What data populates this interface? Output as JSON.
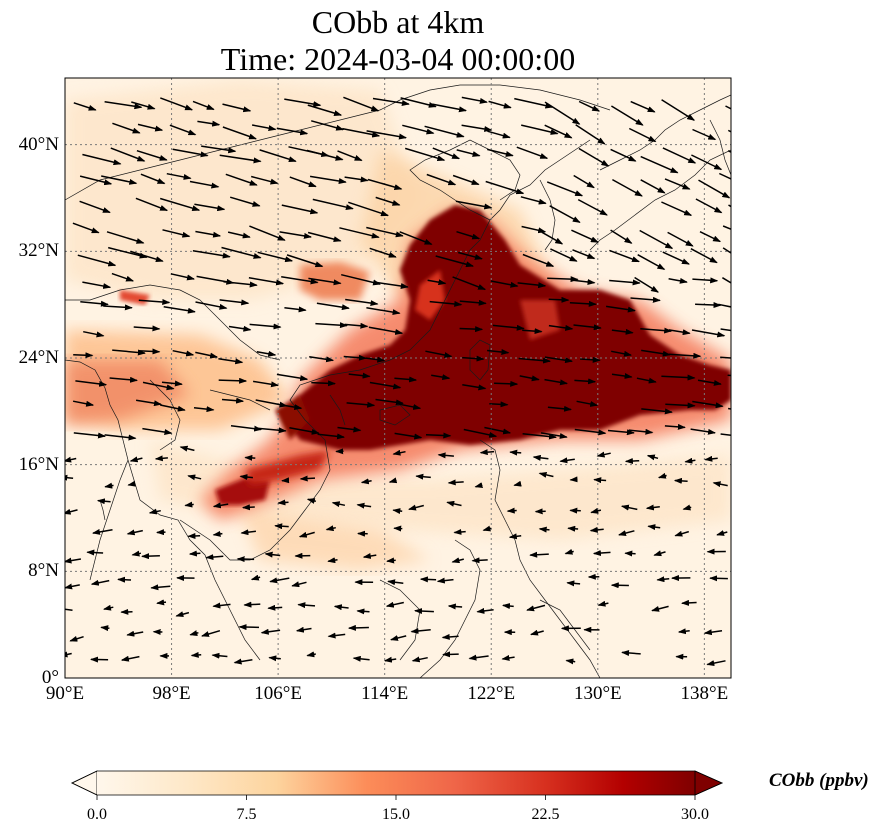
{
  "title": {
    "line1": "CObb at 4km",
    "line2": "Time: 2024-03-04 00:00:00"
  },
  "map": {
    "lon_range": [
      90,
      140
    ],
    "lat_range": [
      0,
      45
    ],
    "lon_ticks": [
      "90°E",
      "98°E",
      "106°E",
      "114°E",
      "122°E",
      "130°E",
      "138°E"
    ],
    "lat_ticks": [
      "0°",
      "8°N",
      "16°N",
      "24°N",
      "32°N",
      "40°N"
    ],
    "lon_tick_values": [
      90,
      98,
      106,
      114,
      122,
      130,
      138
    ],
    "lat_tick_values": [
      0,
      8,
      16,
      24,
      32,
      40
    ],
    "gridlines": true,
    "colormap": "OrRd",
    "colors": {
      "low": "#fff7ec",
      "light": "#fdd49e",
      "mid": "#ef6548",
      "high": "#b30000",
      "max": "#7f0000",
      "coastline": "#1a1a1a",
      "grid": "#7a7a7a",
      "arrow": "#000000"
    },
    "plume_description_values": {
      "core_max_ppbv": 30
    }
  },
  "colorbar": {
    "label": "CObb (ppbv)",
    "ticks": [
      "0.0",
      "7.5",
      "15.0",
      "22.5",
      "30.0"
    ],
    "tick_values": [
      0,
      7.5,
      15,
      22.5,
      30
    ],
    "vmin": 0,
    "vmax": 30,
    "extend": "both"
  }
}
